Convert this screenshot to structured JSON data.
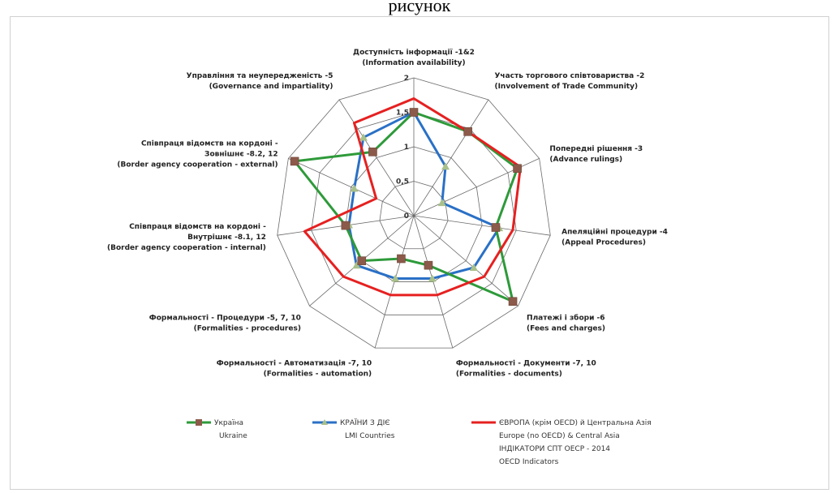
{
  "caption": "рисунок",
  "chart_data": {
    "type": "radar",
    "rlim": [
      0,
      2
    ],
    "ticks": [
      "0",
      "0,5",
      "1",
      "1,5",
      "2"
    ],
    "axes": [
      [
        "Доступність інформації -1&2",
        "(Information availability)"
      ],
      [
        "Участь торгового співтовариства -2",
        "(Involvement of Trade Community)"
      ],
      [
        "Попередні рішення -3",
        "(Advance rulings)"
      ],
      [
        "Апеляційні процедури -4",
        "(Appeal Procedures)"
      ],
      [
        "Платежі і збори -6",
        "(Fees and charges)"
      ],
      [
        "Формальності - Документи -7, 10",
        "(Formalities - documents)"
      ],
      [
        "Формальності - Автоматизація -7, 10",
        "(Formalities - automation)"
      ],
      [
        "Формальності - Процедури -5, 7, 10",
        "(Formalities - procedures)"
      ],
      [
        "Співпраця відомств на кордоні -",
        "Внутрішнє -8.1, 12",
        "(Border agency cooperation - internal)"
      ],
      [
        "Співпраця відомств на кордоні -",
        "Зовнішнє -8.2, 12",
        "(Border agency cooperation - external)"
      ],
      [
        "Управління та неупередженість -5",
        "(Governance and impartiality)"
      ]
    ],
    "series": [
      {
        "name": "Україна Ukraine",
        "legend_lines": [
          "Україна",
          "Ukraine"
        ],
        "color": "#2e9a3a",
        "marker": "square",
        "marker_color": "#8c5a4a",
        "values": [
          1.5,
          1.45,
          1.65,
          1.2,
          1.9,
          0.75,
          0.65,
          1.0,
          1.0,
          1.9,
          1.1
        ]
      },
      {
        "name": "КРАЇНИ З ДІЄ LMI Countries",
        "legend_lines": [
          "КРАЇНИ З ДІЄ",
          "LMI Countries"
        ],
        "color": "#2a70c6",
        "marker": "triangle",
        "marker_color": "#a8c08a",
        "values": [
          1.5,
          0.85,
          0.45,
          1.25,
          1.15,
          0.95,
          0.95,
          1.1,
          0.95,
          0.95,
          1.35
        ]
      },
      {
        "name": "ЄВРОПА (крім ОЕСР) та Центральна Азія Europe (no OECD) & Central Asia",
        "legend_lines": [
          "ЄВРОПА (крім OECD) й Центральна Азія",
          "Europe (no OECD) & Central Asia"
        ],
        "color": "#e62020",
        "marker": "none",
        "values": [
          1.7,
          1.45,
          1.7,
          1.45,
          1.35,
          1.2,
          1.2,
          1.35,
          1.6,
          0.6,
          1.6
        ]
      }
    ],
    "legend_extra": [
      "ІНДІКАТОРИ СПТ ОЕСР - 2014",
      "OECD Indicators"
    ]
  }
}
